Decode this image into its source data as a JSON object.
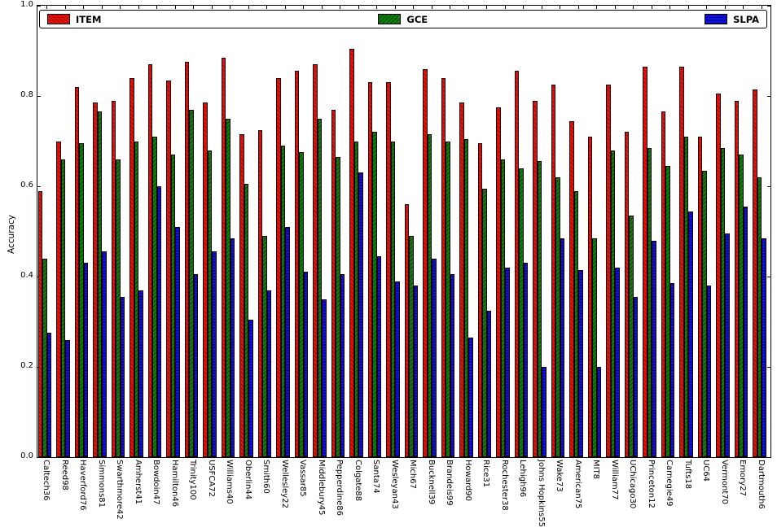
{
  "figure": {
    "background": "#ffffff"
  },
  "chart_data": {
    "type": "bar",
    "title": "",
    "xlabel": "",
    "ylabel": "Accuracy",
    "ylim": [
      0.0,
      1.0
    ],
    "yticks": [
      0.0,
      0.2,
      0.4,
      0.6,
      0.8,
      1.0
    ],
    "ytick_labels": [
      "0.0",
      "0.2",
      "0.4",
      "0.6",
      "0.8",
      "1.0"
    ],
    "grid": false,
    "legend_position": "top-inside-full-width-row",
    "x_label_rotation_deg": 90,
    "categories": [
      "Caltech36",
      "Reed98",
      "Haverford76",
      "Simmons81",
      "Swarthmore42",
      "Amherst41",
      "Bowdoin47",
      "Hamilton46",
      "Trinity100",
      "USFCA72",
      "Williams40",
      "Oberlin44",
      "Smith60",
      "Wellesley22",
      "Vassar85",
      "Middlebury45",
      "Pepperdine86",
      "Colgate88",
      "Santa74",
      "Wesleyan43",
      "Mich67",
      "Bucknell39",
      "Brandeis99",
      "Howard90",
      "Rice31",
      "Rochester38",
      "Lehigh96",
      "Johns Hopkins55",
      "Wake73",
      "American75",
      "MIT8",
      "William77",
      "UChicago30",
      "Princeton12",
      "Carnegie49",
      "Tufts18",
      "UC64",
      "Vermont70",
      "Emory27",
      "Dartmouth6"
    ],
    "series": [
      {
        "name": "ITEM",
        "fill": "#e8120b",
        "hatch_color": "#9e0d07",
        "hatch": "diagonal-45",
        "values": [
          0.59,
          0.7,
          0.82,
          0.785,
          0.79,
          0.84,
          0.87,
          0.835,
          0.875,
          0.785,
          0.885,
          0.715,
          0.725,
          0.84,
          0.855,
          0.87,
          0.77,
          0.905,
          0.83,
          0.83,
          0.56,
          0.86,
          0.84,
          0.785,
          0.695,
          0.775,
          0.855,
          0.79,
          0.825,
          0.745,
          0.71,
          0.825,
          0.72,
          0.865,
          0.765,
          0.865,
          0.71,
          0.805,
          0.79,
          0.815
        ]
      },
      {
        "name": "GCE",
        "fill": "#0f7e0f",
        "hatch_color": "#064e06",
        "hatch": "diagonal-135",
        "values": [
          0.44,
          0.66,
          0.695,
          0.765,
          0.66,
          0.7,
          0.71,
          0.67,
          0.77,
          0.68,
          0.75,
          0.605,
          0.49,
          0.69,
          0.675,
          0.75,
          0.665,
          0.7,
          0.72,
          0.7,
          0.49,
          0.715,
          0.7,
          0.705,
          0.595,
          0.66,
          0.64,
          0.655,
          0.62,
          0.59,
          0.485,
          0.68,
          0.535,
          0.685,
          0.645,
          0.71,
          0.635,
          0.685,
          0.67,
          0.62
        ]
      },
      {
        "name": "SLPA",
        "fill": "#1212e0",
        "hatch_color": "#00007f",
        "hatch": "horizontal",
        "values": [
          0.275,
          0.26,
          0.43,
          0.455,
          0.355,
          0.37,
          0.6,
          0.51,
          0.405,
          0.455,
          0.485,
          0.305,
          0.37,
          0.51,
          0.41,
          0.35,
          0.405,
          0.63,
          0.445,
          0.39,
          0.38,
          0.44,
          0.405,
          0.265,
          0.325,
          0.42,
          0.43,
          0.2,
          0.485,
          0.415,
          0.2,
          0.42,
          0.355,
          0.48,
          0.385,
          0.545,
          0.38,
          0.495,
          0.555,
          0.485
        ]
      }
    ]
  }
}
